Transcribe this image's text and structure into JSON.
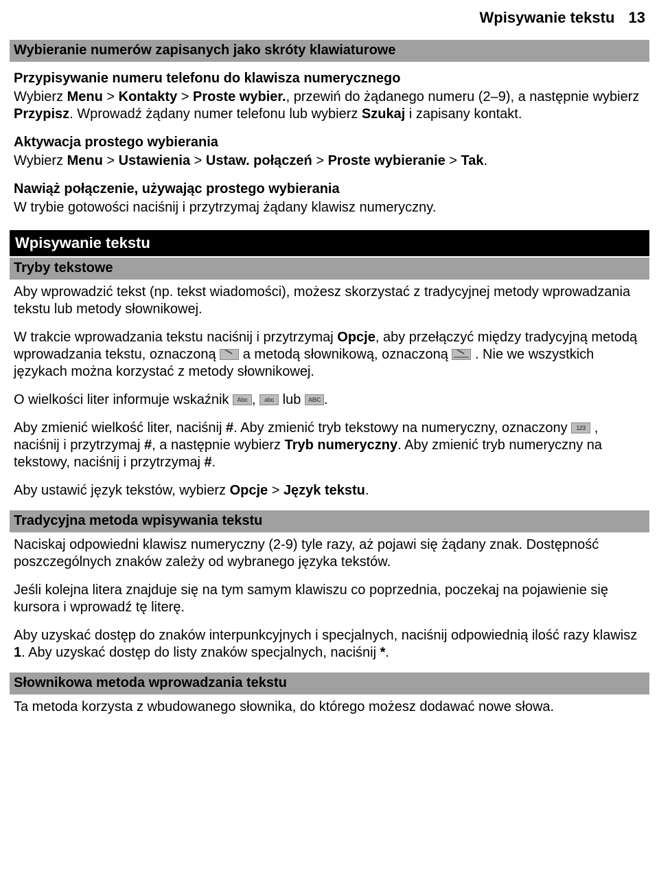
{
  "header": {
    "title": "Wpisywanie tekstu",
    "page_number": "13"
  },
  "sec1": {
    "bar": "Wybieranie numerów zapisanych jako skróty klawiaturowe",
    "sub1": "Przypisywanie numeru telefonu do klawisza numerycznego",
    "p1a": "Wybierz ",
    "p1b": "Menu",
    "p1c": " > ",
    "p1d": "Kontakty",
    "p1e": " > ",
    "p1f": "Proste wybier.",
    "p1g": ", przewiń do żądanego numeru (2–9), a następnie wybierz ",
    "p1h": "Przypisz",
    "p1i": ". Wprowadź żądany numer telefonu lub wybierz ",
    "p1j": "Szukaj",
    "p1k": " i zapisany kontakt.",
    "sub2": "Aktywacja prostego wybierania",
    "p2a": "Wybierz ",
    "p2b": "Menu",
    "p2c": " > ",
    "p2d": "Ustawienia",
    "p2e": " > ",
    "p2f": "Ustaw. połączeń",
    "p2g": " > ",
    "p2h": "Proste wybieranie",
    "p2i": " > ",
    "p2j": "Tak",
    "p2k": ".",
    "sub3": "Nawiąż połączenie, używając prostego wybierania",
    "p3": "W trybie gotowości naciśnij i przytrzymaj żądany klawisz numeryczny."
  },
  "sec2": {
    "black": "Wpisywanie tekstu",
    "bar": "Tryby tekstowe",
    "p1": "Aby wprowadzić tekst (np. tekst wiadomości), możesz skorzystać z tradycyjnej metody wprowadzania tekstu lub metody słownikowej.",
    "p2a": "W trakcie wprowadzania tekstu naciśnij i przytrzymaj ",
    "p2b": "Opcje",
    "p2c": ", aby przełączyć między tradycyjną metodą wprowadzania tekstu, oznaczoną ",
    "p2d": " a metodą słownikową, oznaczoną ",
    "p2e": ". Nie we wszystkich językach można korzystać z metody słownikowej.",
    "p3a": "O wielkości liter informuje wskaźnik ",
    "p3b": ", ",
    "p3c": " lub ",
    "p3d": ".",
    "p4a": "Aby zmienić wielkość liter, naciśnij ",
    "p4b": "#",
    "p4c": ". Aby zmienić tryb tekstowy na numeryczny, oznaczony ",
    "p4d": ", naciśnij i przytrzymaj ",
    "p4e": "#",
    "p4f": ", a następnie wybierz ",
    "p4g": "Tryb numeryczny",
    "p4h": ". Aby zmienić tryb numeryczny na tekstowy, naciśnij i przytrzymaj ",
    "p4i": "#",
    "p4j": ".",
    "p5a": "Aby ustawić język tekstów, wybierz ",
    "p5b": "Opcje",
    "p5c": " > ",
    "p5d": "Język tekstu",
    "p5e": "."
  },
  "sec3": {
    "bar": "Tradycyjna metoda wpisywania tekstu",
    "p1": "Naciskaj odpowiedni klawisz numeryczny (2-9) tyle razy, aż pojawi się żądany znak. Dostępność poszczególnych znaków zależy od wybranego języka tekstów.",
    "p2": "Jeśli kolejna litera znajduje się na tym samym klawiszu co poprzednia, poczekaj na pojawienie się kursora i wprowadź tę literę.",
    "p3a": "Aby uzyskać dostęp do znaków interpunkcyjnych i specjalnych, naciśnij odpowiednią ilość razy klawisz ",
    "p3b": "1",
    "p3c": ". Aby uzyskać dostęp do listy znaków specjalnych, naciśnij ",
    "p3d": "*",
    "p3e": "."
  },
  "sec4": {
    "bar": "Słownikowa metoda wprowadzania tekstu",
    "p1": "Ta metoda korzysta z wbudowanego słownika, do którego możesz dodawać nowe słowa."
  },
  "icons": {
    "abc_upper": "Abc",
    "abc_lower": "abc",
    "abc_caps": "ABC",
    "numeric": "123"
  },
  "colors": {
    "gray_bar": "#a0a0a0",
    "black_bar": "#000000",
    "text": "#000000",
    "icon_bg": "#bdbdbd"
  }
}
